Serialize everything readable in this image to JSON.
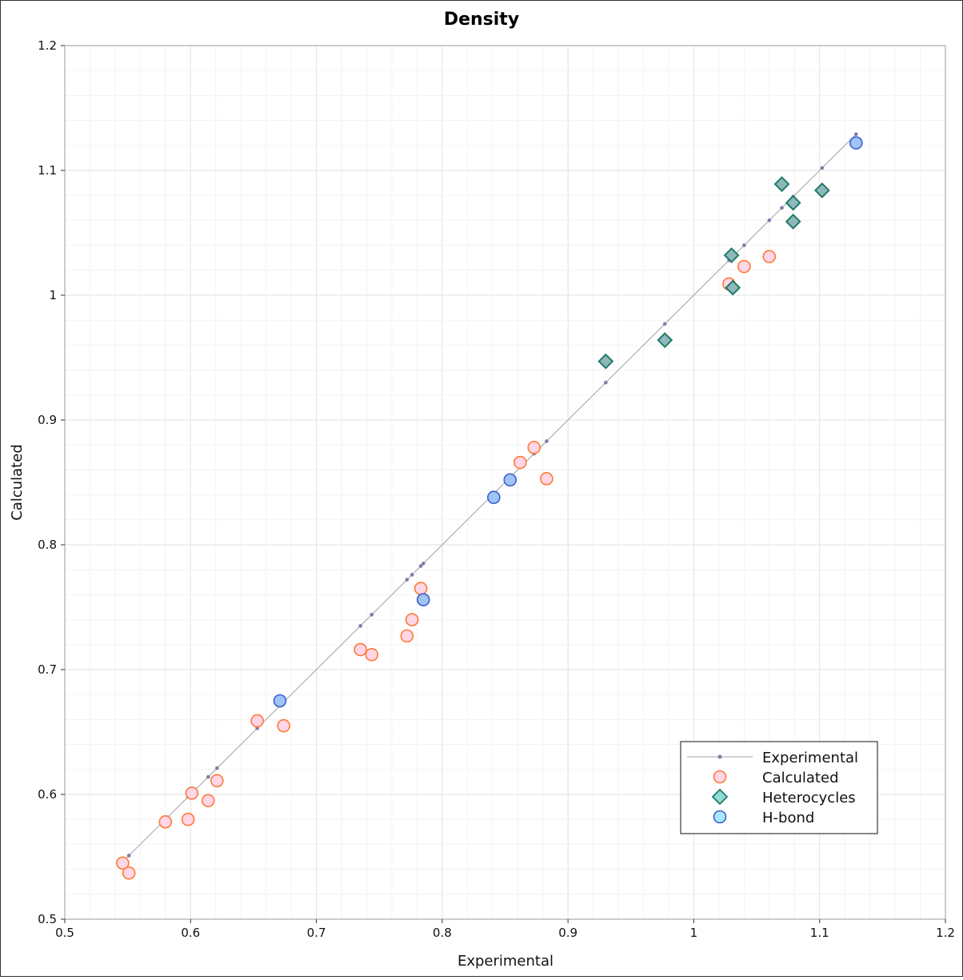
{
  "chart_data": {
    "type": "scatter",
    "title": "Density",
    "xlabel": "Experimental",
    "ylabel": "Calculated",
    "xlim": [
      0.5,
      1.2
    ],
    "ylim": [
      0.5,
      1.2
    ],
    "xticks": [
      0.5,
      0.6,
      0.7,
      0.8,
      0.9,
      1,
      1.1,
      1.2
    ],
    "yticks": [
      0.5,
      0.6,
      0.7,
      0.8,
      0.9,
      1,
      1.1,
      1.2
    ],
    "xtick_labels": [
      "0.5",
      "0.6",
      "0.7",
      "0.8",
      "0.9",
      "1",
      "1.1",
      "1.2"
    ],
    "ytick_labels": [
      "0.5",
      "0.6",
      "0.7",
      "0.8",
      "0.9",
      "1",
      "1.1",
      "1.2"
    ],
    "grid": true,
    "legend_position": "bottom-right",
    "colors": {
      "experimental_line": "#a0a0a8",
      "experimental_dot": "#7c7ca6",
      "calculated_fill": "#ffd6e7",
      "calculated_stroke": "#ff7a33",
      "heterocycles_fill": "#8fb8b8",
      "heterocycles_stroke": "#1f7a6a",
      "hbond_fill": "#9fc4f5",
      "hbond_stroke": "#3a5fd0"
    },
    "series": [
      {
        "name": "Experimental",
        "kind": "line",
        "points": [
          [
            0.546,
            0.546
          ],
          [
            0.551,
            0.551
          ],
          [
            0.58,
            0.58
          ],
          [
            0.598,
            0.598
          ],
          [
            0.601,
            0.601
          ],
          [
            0.614,
            0.614
          ],
          [
            0.621,
            0.621
          ],
          [
            0.653,
            0.653
          ],
          [
            0.671,
            0.671
          ],
          [
            0.674,
            0.674
          ],
          [
            0.735,
            0.735
          ],
          [
            0.744,
            0.744
          ],
          [
            0.772,
            0.772
          ],
          [
            0.776,
            0.776
          ],
          [
            0.783,
            0.783
          ],
          [
            0.785,
            0.785
          ],
          [
            0.841,
            0.841
          ],
          [
            0.854,
            0.854
          ],
          [
            0.862,
            0.862
          ],
          [
            0.873,
            0.873
          ],
          [
            0.883,
            0.883
          ],
          [
            0.93,
            0.93
          ],
          [
            0.977,
            0.977
          ],
          [
            1.028,
            1.028
          ],
          [
            1.03,
            1.03
          ],
          [
            1.04,
            1.04
          ],
          [
            1.06,
            1.06
          ],
          [
            1.07,
            1.07
          ],
          [
            1.079,
            1.079
          ],
          [
            1.102,
            1.102
          ],
          [
            1.129,
            1.129
          ]
        ]
      },
      {
        "name": "Calculated",
        "kind": "circle",
        "points": [
          [
            0.546,
            0.545
          ],
          [
            0.551,
            0.537
          ],
          [
            0.58,
            0.578
          ],
          [
            0.598,
            0.58
          ],
          [
            0.601,
            0.601
          ],
          [
            0.614,
            0.595
          ],
          [
            0.621,
            0.611
          ],
          [
            0.653,
            0.659
          ],
          [
            0.674,
            0.655
          ],
          [
            0.735,
            0.716
          ],
          [
            0.744,
            0.712
          ],
          [
            0.772,
            0.727
          ],
          [
            0.776,
            0.74
          ],
          [
            0.783,
            0.765
          ],
          [
            0.862,
            0.866
          ],
          [
            0.873,
            0.878
          ],
          [
            0.883,
            0.853
          ],
          [
            1.028,
            1.009
          ],
          [
            1.04,
            1.023
          ],
          [
            1.06,
            1.031
          ]
        ]
      },
      {
        "name": "Heterocycles",
        "kind": "diamond",
        "points": [
          [
            0.93,
            0.947
          ],
          [
            0.977,
            0.964
          ],
          [
            1.03,
            1.032
          ],
          [
            1.031,
            1.006
          ],
          [
            1.07,
            1.089
          ],
          [
            1.079,
            1.074
          ],
          [
            1.079,
            1.059
          ],
          [
            1.102,
            1.084
          ]
        ]
      },
      {
        "name": "H-bond",
        "kind": "circle",
        "points": [
          [
            0.671,
            0.675
          ],
          [
            0.785,
            0.756
          ],
          [
            0.841,
            0.838
          ],
          [
            0.854,
            0.852
          ],
          [
            1.129,
            1.122
          ]
        ]
      }
    ],
    "legend": [
      "Experimental",
      "Calculated",
      "Heterocycles",
      "H-bond"
    ]
  }
}
